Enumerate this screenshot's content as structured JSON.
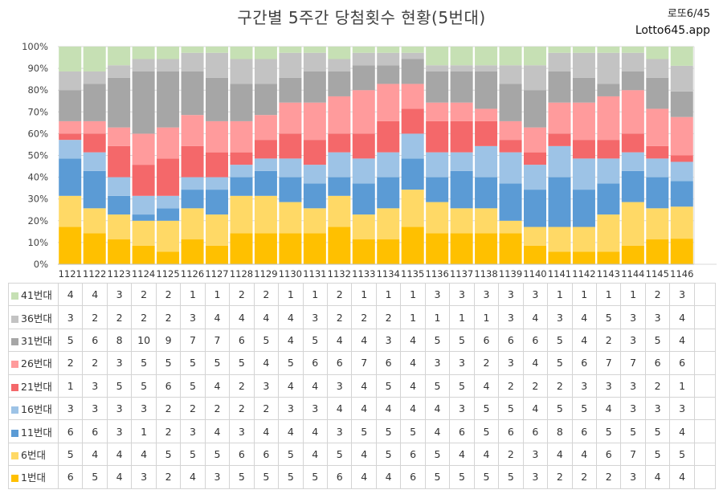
{
  "header": {
    "title": "구간별 5주간 당첨횟수 현황(5번대)",
    "brand_top": "로또6/45",
    "brand_bottom": "Lotto645.app"
  },
  "chart_data": {
    "type": "bar",
    "stacked": "percent",
    "categories": [
      "1121",
      "1122",
      "1123",
      "1124",
      "1125",
      "1126",
      "1127",
      "1128",
      "1129",
      "1130",
      "1131",
      "1132",
      "1133",
      "1134",
      "1135",
      "1136",
      "1137",
      "1138",
      "1139",
      "1140",
      "1141",
      "1142",
      "1143",
      "1144",
      "1145",
      "1146"
    ],
    "y_ticks": [
      "0%",
      "10%",
      "20%",
      "30%",
      "40%",
      "50%",
      "60%",
      "70%",
      "80%",
      "90%",
      "100%"
    ],
    "ylim": [
      0,
      100
    ],
    "grid": true,
    "legend": "table-left",
    "series": [
      {
        "name": "1번대",
        "color": "#FFC000",
        "values": [
          6,
          5,
          4,
          3,
          2,
          4,
          3,
          5,
          5,
          5,
          5,
          6,
          4,
          4,
          6,
          5,
          5,
          5,
          5,
          3,
          2,
          2,
          2,
          3,
          4,
          4
        ]
      },
      {
        "name": "6번대",
        "color": "#FFD966",
        "values": [
          5,
          4,
          4,
          4,
          5,
          5,
          5,
          6,
          6,
          5,
          4,
          5,
          4,
          5,
          6,
          5,
          4,
          4,
          2,
          3,
          4,
          4,
          6,
          7,
          5,
          5
        ]
      },
      {
        "name": "11번대",
        "color": "#5B9BD5",
        "values": [
          6,
          6,
          3,
          1,
          2,
          3,
          4,
          3,
          4,
          4,
          4,
          3,
          5,
          5,
          5,
          4,
          6,
          5,
          6,
          6,
          8,
          6,
          5,
          5,
          5,
          4
        ]
      },
      {
        "name": "16번대",
        "color": "#9DC3E6",
        "values": [
          3,
          3,
          3,
          3,
          2,
          2,
          2,
          2,
          2,
          3,
          3,
          4,
          4,
          4,
          4,
          4,
          3,
          5,
          5,
          4,
          5,
          5,
          4,
          3,
          3,
          3
        ]
      },
      {
        "name": "21번대",
        "color": "#F4686A",
        "values": [
          1,
          3,
          5,
          5,
          6,
          5,
          4,
          2,
          3,
          4,
          4,
          3,
          4,
          5,
          4,
          5,
          5,
          4,
          2,
          2,
          2,
          3,
          3,
          3,
          2,
          1
        ]
      },
      {
        "name": "26번대",
        "color": "#FF9B9C",
        "values": [
          2,
          2,
          3,
          5,
          5,
          5,
          5,
          5,
          4,
          5,
          6,
          6,
          7,
          6,
          4,
          3,
          3,
          2,
          3,
          4,
          5,
          6,
          7,
          7,
          6,
          6
        ]
      },
      {
        "name": "31번대",
        "color": "#A6A6A6",
        "values": [
          5,
          6,
          8,
          10,
          9,
          7,
          7,
          6,
          5,
          4,
          5,
          4,
          4,
          3,
          4,
          5,
          5,
          6,
          6,
          6,
          5,
          4,
          2,
          3,
          5,
          4
        ]
      },
      {
        "name": "36번대",
        "color": "#C3C3C3",
        "values": [
          3,
          2,
          2,
          2,
          2,
          3,
          4,
          4,
          4,
          4,
          3,
          2,
          2,
          2,
          1,
          1,
          1,
          1,
          3,
          4,
          3,
          4,
          5,
          3,
          3,
          4
        ]
      },
      {
        "name": "41번대",
        "color": "#C6E0B4",
        "values": [
          4,
          4,
          3,
          2,
          2,
          1,
          1,
          2,
          2,
          1,
          1,
          2,
          1,
          1,
          1,
          3,
          3,
          3,
          3,
          3,
          1,
          1,
          1,
          1,
          2,
          3
        ]
      }
    ]
  }
}
